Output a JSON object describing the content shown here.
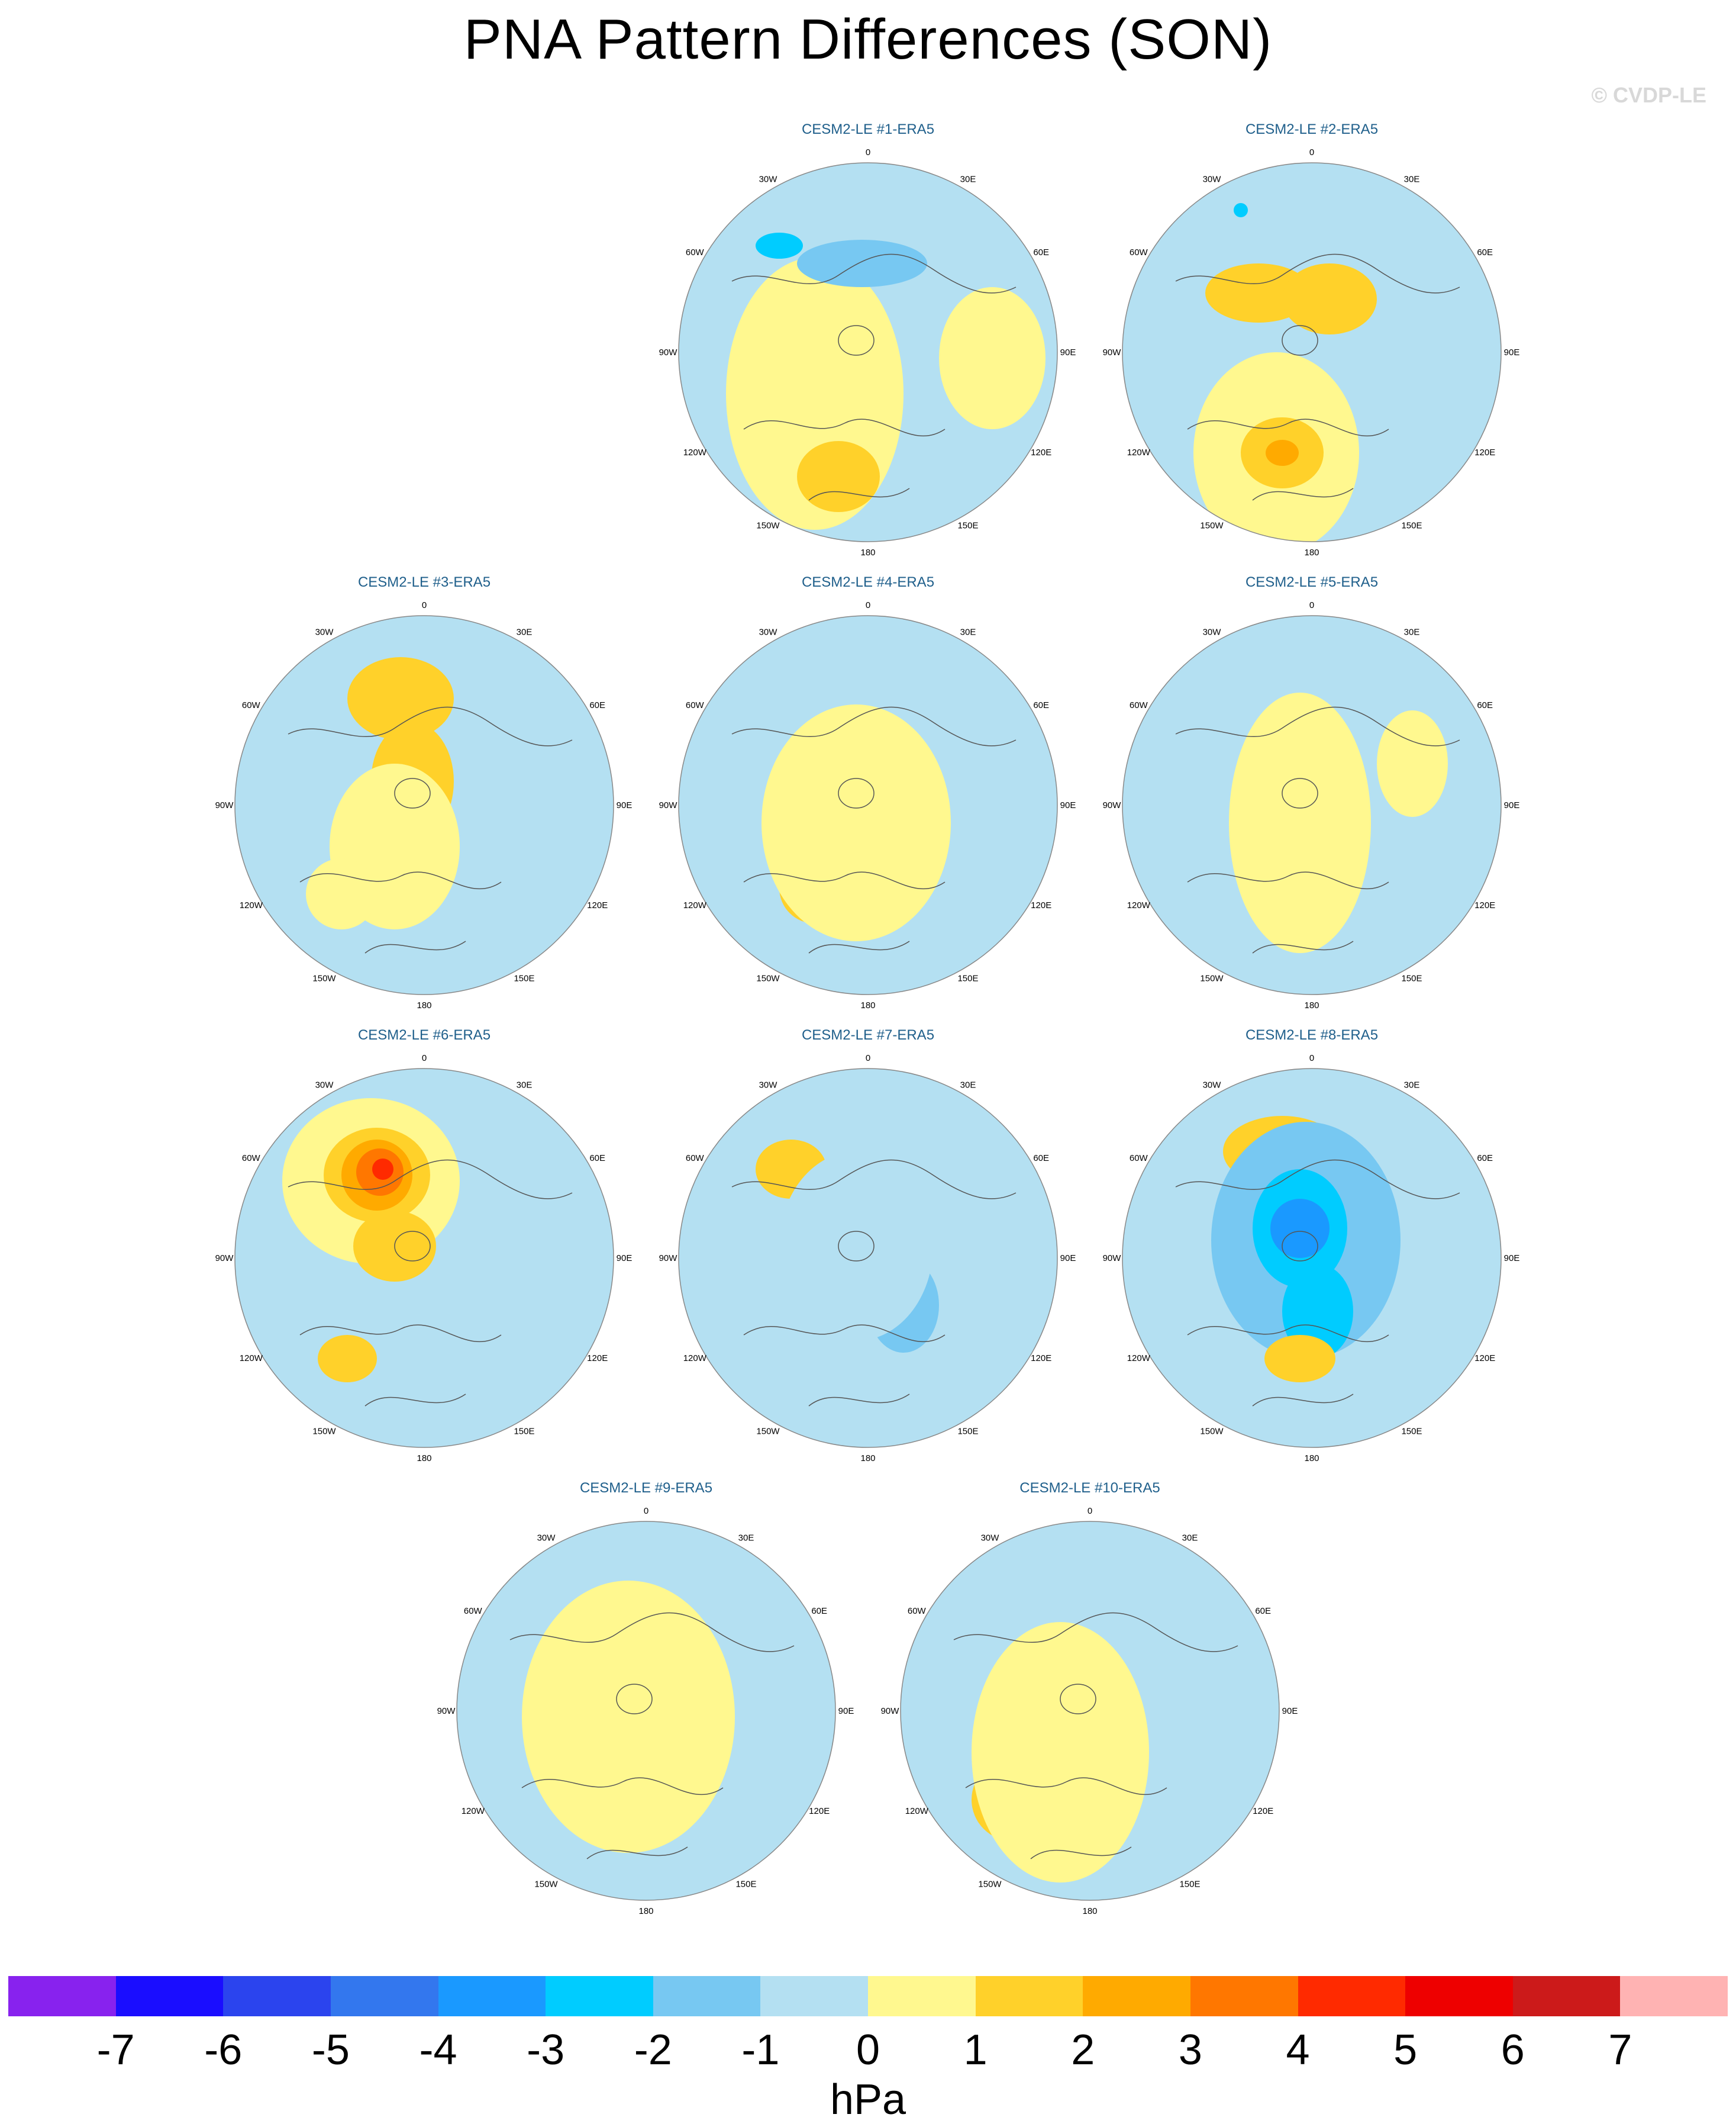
{
  "title": "PNA Pattern Differences (SON)",
  "copyright": "© CVDP-LE",
  "longitude_labels": [
    "180",
    "150E",
    "120E",
    "90E",
    "60E",
    "30E",
    "0",
    "30W",
    "60W",
    "90W",
    "120W",
    "150W"
  ],
  "panels": [
    {
      "title": "CESM2-LE #1-ERA5"
    },
    {
      "title": "CESM2-LE #2-ERA5"
    },
    {
      "title": "CESM2-LE #3-ERA5"
    },
    {
      "title": "CESM2-LE #4-ERA5"
    },
    {
      "title": "CESM2-LE #5-ERA5"
    },
    {
      "title": "CESM2-LE #6-ERA5"
    },
    {
      "title": "CESM2-LE #7-ERA5"
    },
    {
      "title": "CESM2-LE #8-ERA5"
    },
    {
      "title": "CESM2-LE #9-ERA5"
    },
    {
      "title": "CESM2-LE #10-ERA5"
    }
  ],
  "colorbar": {
    "units": "hPa",
    "labels": [
      "-7",
      "-6",
      "-5",
      "-4",
      "-3",
      "-2",
      "-1",
      "0",
      "1",
      "2",
      "3",
      "4",
      "5",
      "6",
      "7"
    ],
    "colors": [
      "#8822ee",
      "#1a0dff",
      "#2b44ee",
      "#3377ee",
      "#1a99ff",
      "#00ccff",
      "#77c8f2",
      "#b4e0f2",
      "#fff88f",
      "#ffd12a",
      "#ffaa00",
      "#ff7700",
      "#ff2a00",
      "#ee0000",
      "#cc1a1a",
      "#ffb3b3"
    ]
  },
  "colors": {
    "land_outline": "#555555",
    "panel_title": "#1f5f8b",
    "neutral_negative": "#b4e0f2",
    "neutral_positive": "#fff88f"
  }
}
